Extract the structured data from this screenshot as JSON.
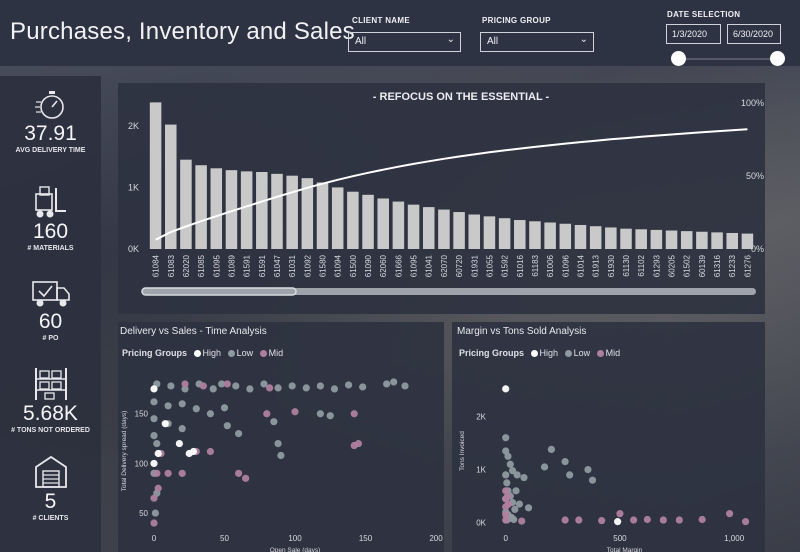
{
  "header": {
    "title": "Purchases, Inventory and Sales",
    "client_filter": {
      "label": "CLIENT NAME",
      "value": "All"
    },
    "pricing_filter": {
      "label": "PRICING GROUP",
      "value": "All"
    },
    "date_selection": {
      "label": "DATE SELECTION",
      "start": "1/3/2020",
      "end": "6/30/2020"
    }
  },
  "kpis": [
    {
      "value": "37.91",
      "label": "AVG DELIVERY TIME",
      "icon": "stopwatch-icon"
    },
    {
      "value": "160",
      "label": "# MATERIALS",
      "icon": "forklift-icon"
    },
    {
      "value": "60",
      "label": "# PO",
      "icon": "delivery-truck-icon"
    },
    {
      "value": "5.68K",
      "label": "# TONS NOT ORDERED",
      "icon": "warehouse-shelf-icon"
    },
    {
      "value": "5",
      "label": "# CLIENTS",
      "icon": "warehouse-building-icon"
    }
  ],
  "colors": {
    "bar": "#c9c9c9",
    "high": "#ffffff",
    "low": "#8e9aa0",
    "mid": "#b07fa0"
  },
  "chart_data": [
    {
      "type": "bar",
      "title": "- REFOCUS ON THE ESSENTIAL -",
      "categories": [
        "61084",
        "61083",
        "62020",
        "61085",
        "61095",
        "61089",
        "61591",
        "61591",
        "61047",
        "61031",
        "61092",
        "61580",
        "61094",
        "61500",
        "61090",
        "62060",
        "61666",
        "61095",
        "61041",
        "62070",
        "60720",
        "61931",
        "61055",
        "61592",
        "61016",
        "61183",
        "61006",
        "61096",
        "61014",
        "61913",
        "61930",
        "61130",
        "61102",
        "61293",
        "60205",
        "61502",
        "60139",
        "61316",
        "61233",
        "61276"
      ],
      "values": [
        2380,
        2020,
        1450,
        1360,
        1310,
        1280,
        1260,
        1250,
        1220,
        1190,
        1150,
        1080,
        1000,
        930,
        880,
        820,
        770,
        720,
        680,
        640,
        600,
        560,
        530,
        500,
        470,
        450,
        430,
        410,
        390,
        370,
        350,
        330,
        320,
        310,
        300,
        290,
        280,
        270,
        260,
        250
      ],
      "cumulative_pct_line": true,
      "y_ticks": [
        "0K",
        "1K",
        "2K"
      ],
      "y2_ticks": [
        "0%",
        "50%",
        "100%"
      ],
      "ylim": [
        0,
        2500
      ]
    },
    {
      "type": "scatter",
      "title": "Delivery vs Sales - Time Analysis",
      "legend_title": "Pricing Groups",
      "legend": [
        "High",
        "Low",
        "Mid"
      ],
      "xlabel": "Open Sale (days)",
      "ylabel": "Total Delivery spread (days)",
      "xlim": [
        0,
        200
      ],
      "ylim": [
        35,
        190
      ],
      "x_ticks": [
        "0",
        "50",
        "100",
        "150",
        "200"
      ],
      "y_ticks": [
        "50",
        "100",
        "150"
      ],
      "series": [
        {
          "name": "High",
          "points": [
            [
              0,
              175
            ],
            [
              8,
              140
            ],
            [
              18,
              120
            ],
            [
              25,
              110
            ],
            [
              3,
              110
            ],
            [
              28,
              112
            ],
            [
              0,
              100
            ]
          ]
        },
        {
          "name": "Low",
          "points": [
            [
              2,
              180
            ],
            [
              12,
              178
            ],
            [
              22,
              175
            ],
            [
              32,
              180
            ],
            [
              42,
              175
            ],
            [
              48,
              180
            ],
            [
              58,
              178
            ],
            [
              68,
              175
            ],
            [
              78,
              180
            ],
            [
              88,
              176
            ],
            [
              98,
              178
            ],
            [
              108,
              176
            ],
            [
              118,
              178
            ],
            [
              128,
              175
            ],
            [
              138,
              179
            ],
            [
              148,
              177
            ],
            [
              0,
              162
            ],
            [
              10,
              158
            ],
            [
              20,
              160
            ],
            [
              30,
              155
            ],
            [
              40,
              150
            ],
            [
              50,
              156
            ],
            [
              0,
              145
            ],
            [
              10,
              140
            ],
            [
              20,
              135
            ],
            [
              52,
              138
            ],
            [
              60,
              130
            ],
            [
              85,
              142
            ],
            [
              88,
              120
            ],
            [
              90,
              108
            ],
            [
              0,
              128
            ],
            [
              2,
              120
            ],
            [
              0,
              90
            ],
            [
              2,
              70
            ],
            [
              1,
              50
            ],
            [
              165,
              180
            ],
            [
              170,
              182
            ],
            [
              178,
              178
            ],
            [
              118,
              150
            ],
            [
              125,
              148
            ]
          ]
        },
        {
          "name": "Mid",
          "points": [
            [
              22,
              180
            ],
            [
              35,
              178
            ],
            [
              52,
              180
            ],
            [
              82,
              176
            ],
            [
              80,
              150
            ],
            [
              100,
              152
            ],
            [
              142,
              150
            ],
            [
              145,
              120
            ],
            [
              142,
              118
            ],
            [
              40,
              112
            ],
            [
              30,
              112
            ],
            [
              5,
              110
            ],
            [
              10,
              90
            ],
            [
              20,
              90
            ],
            [
              2,
              90
            ],
            [
              60,
              90
            ],
            [
              65,
              85
            ],
            [
              3,
              75
            ],
            [
              0,
              65
            ],
            [
              0,
              40
            ]
          ]
        }
      ]
    },
    {
      "type": "scatter",
      "title": "Margin vs Tons Sold Analysis",
      "legend_title": "Pricing Groups",
      "legend": [
        "High",
        "Low",
        "Mid"
      ],
      "xlabel": "Total Margin",
      "ylabel": "Tons Invoiced",
      "xlim": [
        -60,
        1100
      ],
      "ylim": [
        -100,
        2800
      ],
      "x_ticks": [
        "0",
        "500",
        "1,000"
      ],
      "y_ticks": [
        "0K",
        "1K",
        "2K"
      ],
      "series": [
        {
          "name": "High",
          "points": [
            [
              0,
              2520
            ],
            [
              490,
              20
            ]
          ]
        },
        {
          "name": "Low",
          "points": [
            [
              0,
              1600
            ],
            [
              0,
              1350
            ],
            [
              10,
              1250
            ],
            [
              20,
              1100
            ],
            [
              30,
              980
            ],
            [
              50,
              900
            ],
            [
              80,
              850
            ],
            [
              0,
              900
            ],
            [
              5,
              750
            ],
            [
              10,
              600
            ],
            [
              20,
              500
            ],
            [
              30,
              380
            ],
            [
              0,
              200
            ],
            [
              10,
              150
            ],
            [
              40,
              250
            ],
            [
              60,
              350
            ],
            [
              100,
              280
            ],
            [
              5,
              50
            ],
            [
              15,
              80
            ],
            [
              25,
              100
            ],
            [
              35,
              60
            ],
            [
              0,
              450
            ],
            [
              45,
              600
            ],
            [
              200,
              1380
            ],
            [
              170,
              1050
            ],
            [
              260,
              1150
            ],
            [
              360,
              1000
            ],
            [
              380,
              800
            ],
            [
              280,
              900
            ]
          ]
        },
        {
          "name": "Mid",
          "points": [
            [
              0,
              600
            ],
            [
              0,
              450
            ],
            [
              0,
              300
            ],
            [
              0,
              150
            ],
            [
              0,
              50
            ],
            [
              8,
              500
            ],
            [
              12,
              350
            ],
            [
              260,
              50
            ],
            [
              320,
              50
            ],
            [
              420,
              40
            ],
            [
              500,
              170
            ],
            [
              560,
              50
            ],
            [
              620,
              60
            ],
            [
              690,
              50
            ],
            [
              760,
              50
            ],
            [
              860,
              60
            ],
            [
              980,
              170
            ],
            [
              1050,
              20
            ],
            [
              70,
              30
            ]
          ]
        }
      ]
    }
  ]
}
